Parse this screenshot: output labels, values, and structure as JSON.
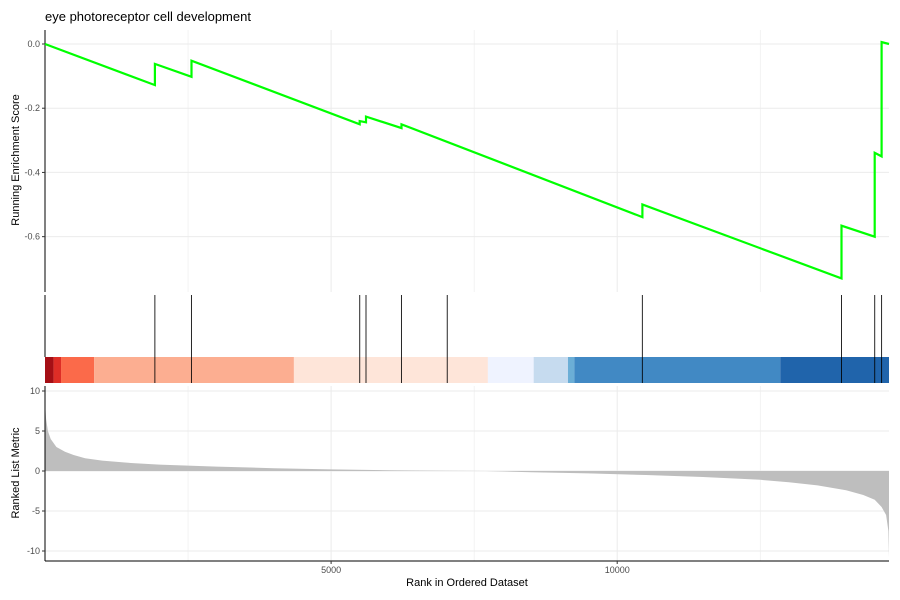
{
  "chart_data": {
    "type": "line",
    "title": "eye photoreceptor cell development",
    "xlabel": "Rank in Ordered Dataset",
    "x_ticks": [
      5000,
      10000
    ],
    "x_tick_labels": [
      "5000",
      "10000"
    ],
    "xlim": [
      0,
      14750
    ],
    "grid": true,
    "running_es": {
      "ylabel": "Running Enrichment Score",
      "ylim": [
        -0.735,
        0.0
      ],
      "y_ticks": [
        0.0,
        -0.2,
        -0.4,
        -0.6
      ],
      "y_tick_labels": [
        "0.0",
        "-0.2",
        "-0.4",
        "-0.6"
      ],
      "color": "#00ff00",
      "series": [
        {
          "x": [
            0,
            1920,
            1920,
            2560,
            2560,
            5500,
            5500,
            5610,
            5610,
            6230,
            6230,
            10440,
            10440,
            13920,
            13920,
            14500,
            14500,
            14620,
            14620,
            14750
          ],
          "y": [
            0.0,
            -0.128,
            -0.062,
            -0.102,
            -0.052,
            -0.25,
            -0.24,
            -0.244,
            -0.226,
            -0.262,
            -0.25,
            -0.539,
            -0.5,
            -0.73,
            -0.566,
            -0.6,
            -0.339,
            -0.35,
            0.006,
            0.0
          ]
        }
      ]
    },
    "hits": [
      1920,
      2560,
      5500,
      5610,
      6230,
      7030,
      10440,
      13920,
      14500,
      14620
    ],
    "color_band": [
      {
        "from": 0,
        "to": 150,
        "color": "#a50f15"
      },
      {
        "from": 150,
        "to": 280,
        "color": "#de2d26"
      },
      {
        "from": 280,
        "to": 860,
        "color": "#fb6a4a"
      },
      {
        "from": 860,
        "to": 4350,
        "color": "#fcae91"
      },
      {
        "from": 4350,
        "to": 7740,
        "color": "#fee5d9"
      },
      {
        "from": 7740,
        "to": 8540,
        "color": "#eff3ff"
      },
      {
        "from": 8540,
        "to": 9140,
        "color": "#c6dbef"
      },
      {
        "from": 9140,
        "to": 9250,
        "color": "#6baed6"
      },
      {
        "from": 9250,
        "to": 12850,
        "color": "#4189c4"
      },
      {
        "from": 12850,
        "to": 14750,
        "color": "#2064ab"
      }
    ],
    "ranked_metric": {
      "ylabel": "Ranked List Metric",
      "ylim": [
        -11.0,
        10.5
      ],
      "y_ticks": [
        10,
        5,
        0,
        -5,
        -10
      ],
      "y_tick_labels": [
        "10",
        "5",
        "0",
        "-5",
        "-10"
      ],
      "fill_color": "#bebebe",
      "x": [
        0,
        20,
        50,
        100,
        200,
        350,
        500,
        700,
        1000,
        1500,
        2000,
        3000,
        4000,
        5000,
        6000,
        7000,
        7700,
        8500,
        9500,
        10500,
        11500,
        12500,
        13000,
        13500,
        14000,
        14300,
        14500,
        14620,
        14700,
        14740,
        14750
      ],
      "values": [
        8.5,
        6.5,
        5.0,
        4.0,
        3.0,
        2.4,
        2.0,
        1.6,
        1.3,
        1.0,
        0.8,
        0.55,
        0.35,
        0.2,
        0.1,
        0.02,
        0.0,
        -0.15,
        -0.3,
        -0.5,
        -0.75,
        -1.1,
        -1.4,
        -1.8,
        -2.4,
        -3.0,
        -3.6,
        -4.5,
        -5.5,
        -7.5,
        -10.8
      ]
    }
  }
}
